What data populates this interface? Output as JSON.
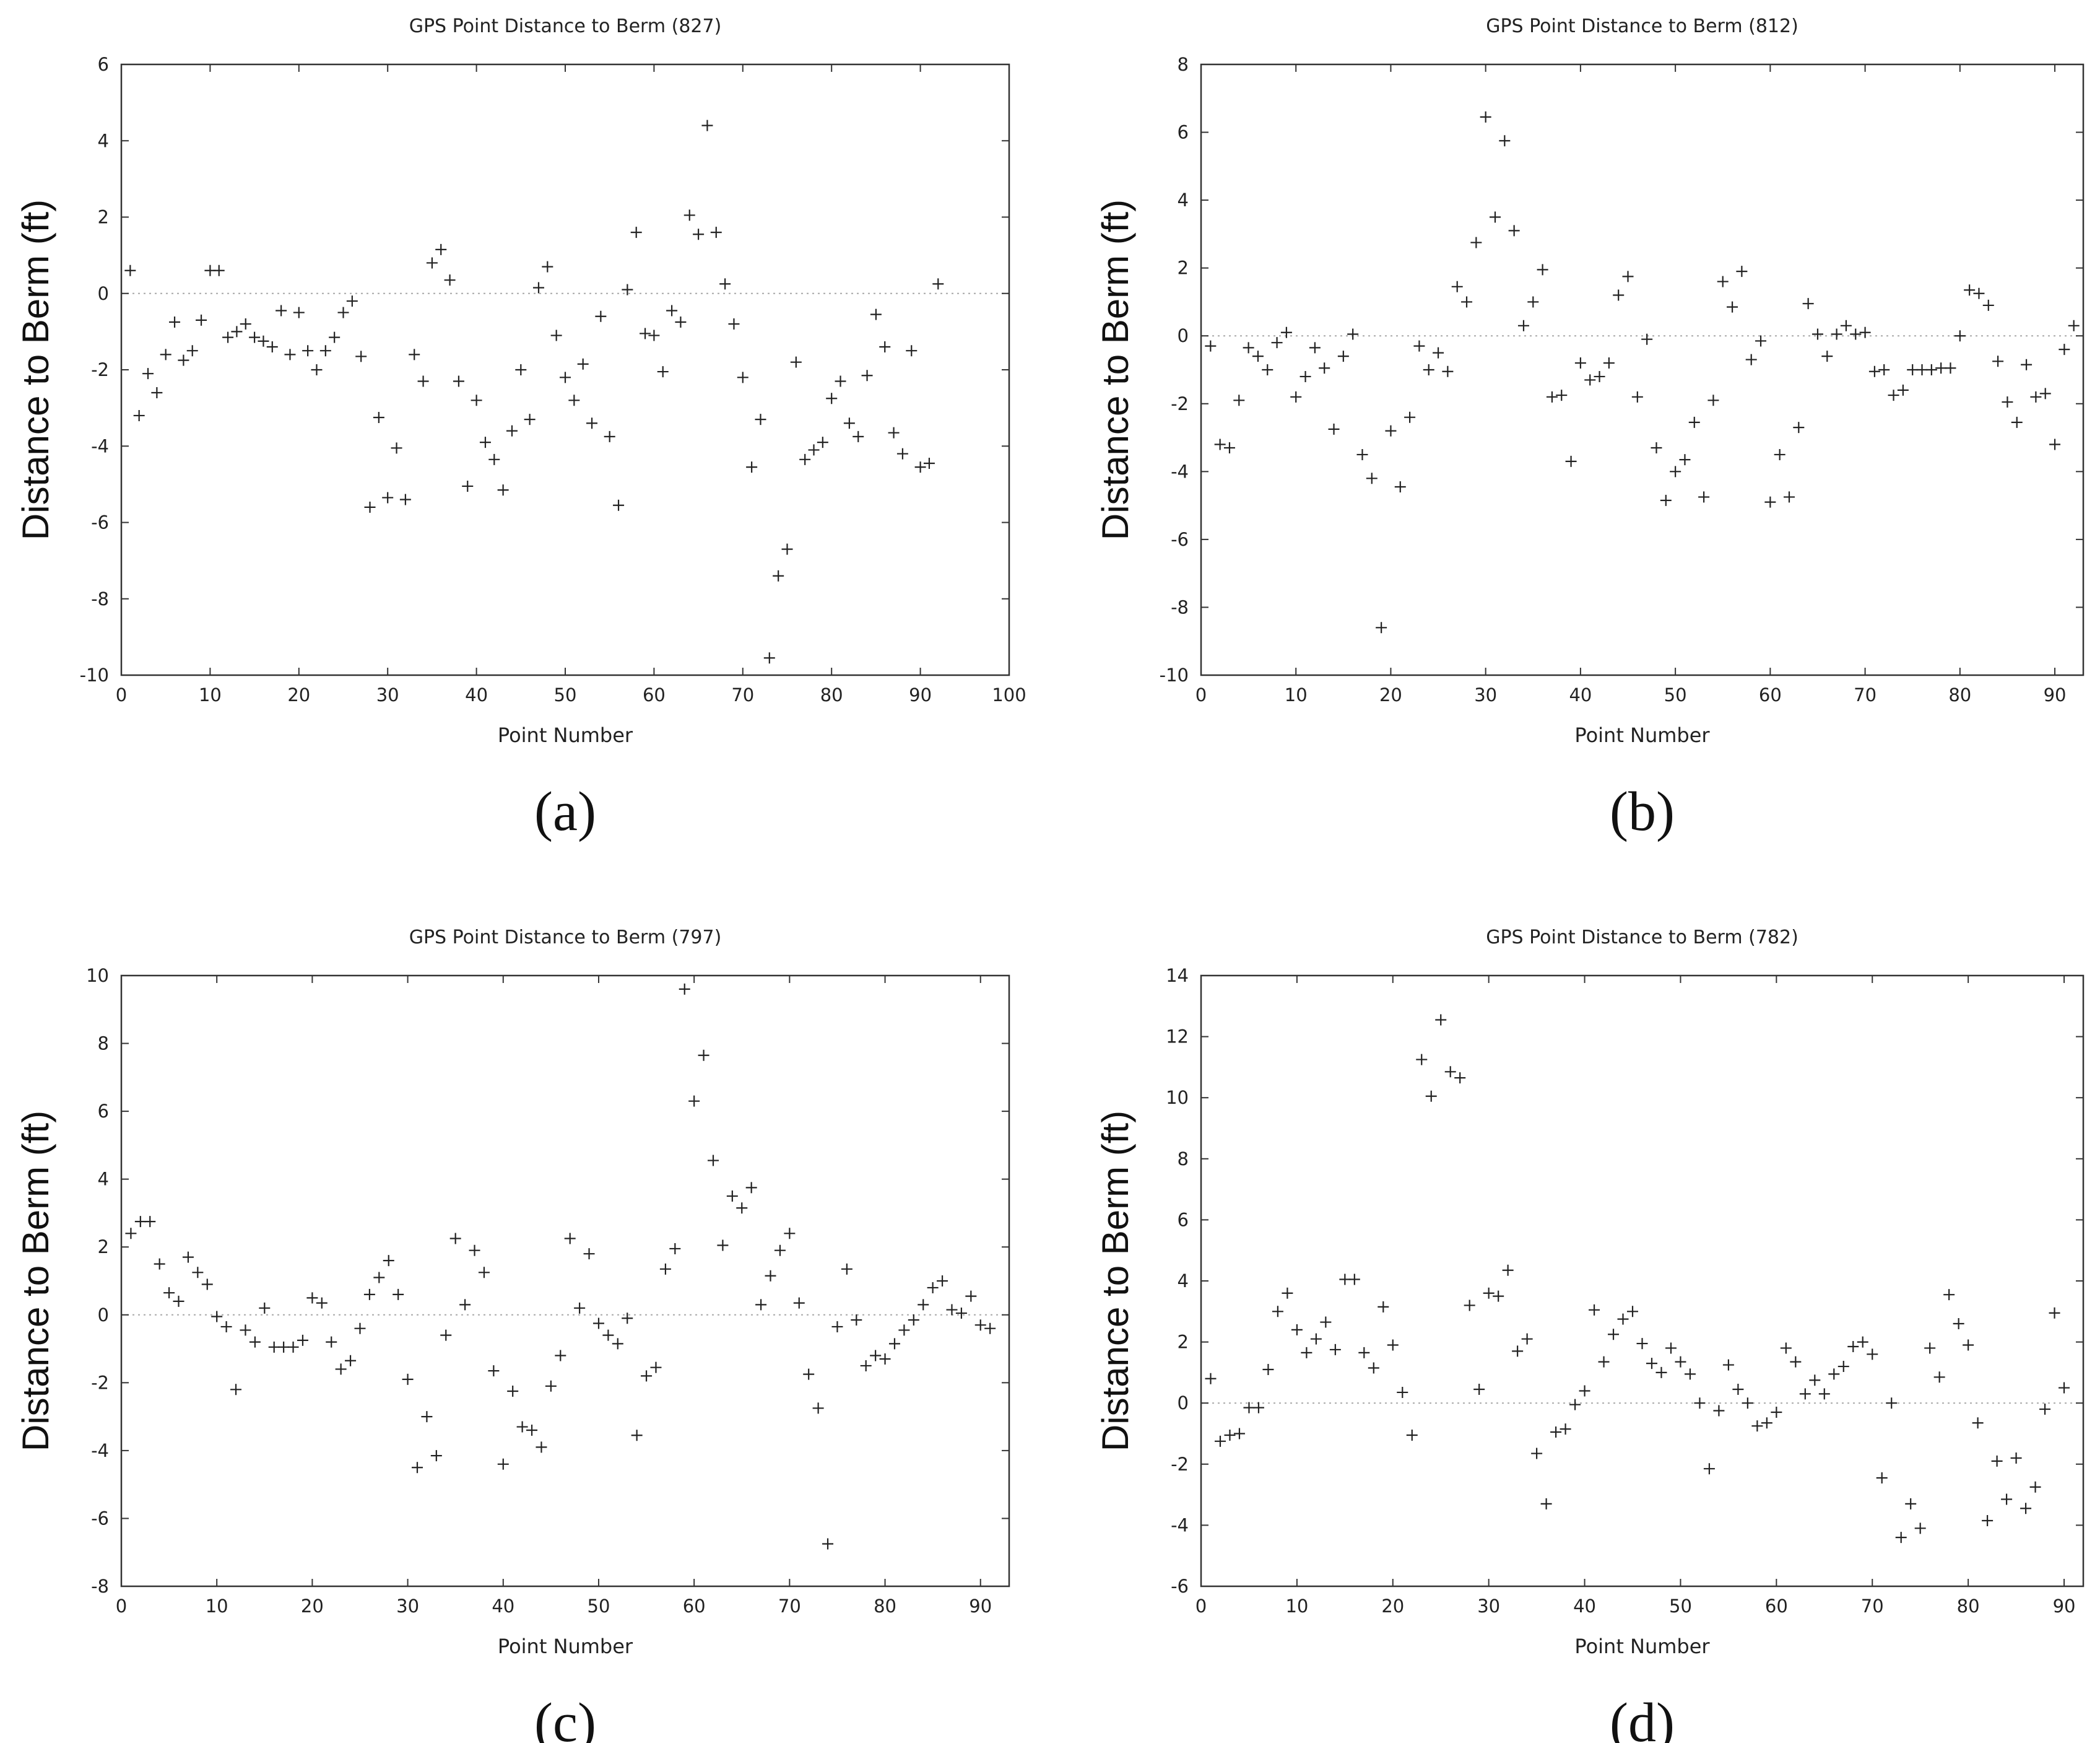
{
  "chart_data": [
    {
      "id": "a",
      "type": "scatter",
      "title": "GPS Point Distance to Berm (827)",
      "xlabel": "Point Number",
      "ylabel": "Distance to Berm (ft)",
      "caption": "(a)",
      "xlim": [
        0,
        100
      ],
      "ylim": [
        -10,
        6
      ],
      "xticks": [
        0,
        10,
        20,
        30,
        40,
        50,
        60,
        70,
        80,
        90,
        100
      ],
      "yticks": [
        -10,
        -8,
        -6,
        -4,
        -2,
        0,
        2,
        4,
        6
      ],
      "zero_line": true,
      "marker": "+",
      "values": [
        0.6,
        -3.2,
        -2.1,
        -2.6,
        -1.6,
        -0.75,
        -1.75,
        -1.5,
        -0.7,
        0.6,
        0.6,
        -1.15,
        -1.0,
        -0.8,
        -1.15,
        -1.25,
        -1.4,
        -0.45,
        -1.6,
        -0.5,
        -1.5,
        -2.0,
        -1.5,
        -1.15,
        -0.5,
        -0.2,
        -1.65,
        -5.6,
        -3.25,
        -5.35,
        -4.05,
        -5.4,
        -1.6,
        -2.3,
        0.8,
        1.15,
        0.35,
        -2.3,
        -5.05,
        -2.8,
        -3.9,
        -4.35,
        -5.15,
        -3.6,
        -2.0,
        -3.3,
        0.15,
        0.7,
        -1.1,
        -2.2,
        -2.8,
        -1.85,
        -3.4,
        -0.6,
        -3.75,
        -5.55,
        0.1,
        1.6,
        -1.05,
        -1.1,
        -2.05,
        -0.45,
        -0.75,
        2.05,
        1.55,
        4.4,
        1.6,
        0.25,
        -0.8,
        -2.2,
        -4.55,
        -3.3,
        -9.55,
        -7.4,
        -6.7,
        -1.8,
        -4.35,
        -4.1,
        -3.9,
        -2.75,
        -2.3,
        -3.4,
        -3.75,
        -2.15,
        -0.55,
        -1.4,
        -3.65,
        -4.2,
        -1.5,
        -4.55,
        -4.45,
        0.25
      ]
    },
    {
      "id": "b",
      "type": "scatter",
      "title": "GPS Point Distance to Berm (812)",
      "xlabel": "Point Number",
      "ylabel": "Distance to Berm (ft)",
      "caption": "(b)",
      "xlim": [
        0,
        93
      ],
      "ylim": [
        -10,
        8
      ],
      "xticks": [
        0,
        10,
        20,
        30,
        40,
        50,
        60,
        70,
        80,
        90
      ],
      "yticks": [
        -10,
        -8,
        -6,
        -4,
        -2,
        0,
        2,
        4,
        6,
        8
      ],
      "zero_line": true,
      "marker": "+",
      "values": [
        -0.3,
        -3.2,
        -3.3,
        -1.9,
        -0.35,
        -0.6,
        -1.0,
        -0.2,
        0.1,
        -1.8,
        -1.2,
        -0.35,
        -0.95,
        -2.75,
        -0.6,
        0.05,
        -3.5,
        -4.2,
        -8.6,
        -2.8,
        -4.45,
        -2.4,
        -0.3,
        -1.0,
        -0.5,
        -1.05,
        1.45,
        1.0,
        2.75,
        6.45,
        3.5,
        5.75,
        3.1,
        0.3,
        1.0,
        1.95,
        -1.8,
        -1.75,
        -3.7,
        -0.8,
        -1.3,
        -1.2,
        -0.8,
        1.2,
        1.75,
        -1.8,
        -0.1,
        -3.3,
        -4.85,
        -4.0,
        -3.65,
        -2.55,
        -4.75,
        -1.9,
        1.6,
        0.85,
        1.9,
        -0.7,
        -0.15,
        -4.9,
        -3.5,
        -4.75,
        -2.7,
        0.95,
        0.05,
        -0.6,
        0.05,
        0.3,
        0.05,
        0.1,
        -1.05,
        -1.0,
        -1.75,
        -1.6,
        -1.0,
        -1.0,
        -1.0,
        -0.95,
        -0.95,
        0.0,
        1.35,
        1.25,
        0.9,
        -0.75,
        -1.95,
        -2.55,
        -0.85,
        -1.8,
        -1.7,
        -3.2,
        -0.4,
        0.3
      ]
    },
    {
      "id": "c",
      "type": "scatter",
      "title": "GPS Point Distance to Berm (797)",
      "xlabel": "Point Number",
      "ylabel": "Distance to Berm (ft)",
      "caption": "(c)",
      "xlim": [
        0,
        93
      ],
      "ylim": [
        -8,
        10
      ],
      "xticks": [
        0,
        10,
        20,
        30,
        40,
        50,
        60,
        70,
        80,
        90
      ],
      "yticks": [
        -8,
        -6,
        -4,
        -2,
        0,
        2,
        4,
        6,
        8,
        10
      ],
      "zero_line": true,
      "marker": "+",
      "values": [
        2.4,
        2.75,
        2.75,
        1.5,
        0.65,
        0.4,
        1.7,
        1.25,
        0.9,
        -0.05,
        -0.35,
        -2.2,
        -0.45,
        -0.8,
        0.2,
        -0.95,
        -0.95,
        -0.95,
        -0.75,
        0.5,
        0.35,
        -0.8,
        -1.6,
        -1.35,
        -0.4,
        0.6,
        1.1,
        1.6,
        0.6,
        -1.9,
        -4.5,
        -3.0,
        -4.15,
        -0.6,
        2.25,
        0.3,
        1.9,
        1.25,
        -1.65,
        -4.4,
        -2.25,
        -3.3,
        -3.4,
        -3.9,
        -2.1,
        -1.2,
        2.25,
        0.2,
        1.8,
        -0.25,
        -0.6,
        -0.85,
        -0.1,
        -3.55,
        -1.8,
        -1.55,
        1.35,
        1.95,
        9.6,
        6.3,
        7.65,
        4.55,
        2.05,
        3.5,
        3.15,
        3.75,
        0.3,
        1.15,
        1.9,
        2.4,
        0.35,
        -1.75,
        -2.75,
        -6.75,
        -0.35,
        1.35,
        -0.15,
        -1.5,
        -1.2,
        -1.3,
        -0.85,
        -0.45,
        -0.15,
        0.3,
        0.8,
        1.0,
        0.15,
        0.05,
        0.55,
        -0.3,
        -0.4
      ]
    },
    {
      "id": "d",
      "type": "scatter",
      "title": "GPS Point Distance to Berm (782)",
      "xlabel": "Point Number",
      "ylabel": "Distance to Berm (ft)",
      "caption": "(d)",
      "xlim": [
        0,
        92
      ],
      "ylim": [
        -6,
        14
      ],
      "xticks": [
        0,
        10,
        20,
        30,
        40,
        50,
        60,
        70,
        80,
        90
      ],
      "yticks": [
        -6,
        -4,
        -2,
        0,
        2,
        4,
        6,
        8,
        10,
        12,
        14
      ],
      "zero_line": true,
      "marker": "+",
      "values": [
        0.8,
        -1.25,
        -1.05,
        -1.0,
        -0.15,
        -0.15,
        1.1,
        3.0,
        3.6,
        2.4,
        1.65,
        2.1,
        2.65,
        1.75,
        4.05,
        4.05,
        1.65,
        1.15,
        3.15,
        1.9,
        0.35,
        -1.05,
        11.25,
        10.05,
        12.55,
        10.85,
        10.65,
        3.2,
        0.45,
        3.6,
        3.5,
        4.35,
        1.7,
        2.1,
        -1.65,
        -3.3,
        -0.95,
        -0.85,
        -0.05,
        0.4,
        3.05,
        1.35,
        2.25,
        2.75,
        3.0,
        1.95,
        1.3,
        1.0,
        1.8,
        1.35,
        0.95,
        0.0,
        -2.15,
        -0.25,
        1.25,
        0.45,
        0.0,
        -0.75,
        -0.65,
        -0.3,
        1.8,
        1.35,
        0.3,
        0.75,
        0.3,
        0.95,
        1.2,
        1.85,
        2.0,
        1.6,
        -2.45,
        0.0,
        -4.4,
        -3.3,
        -4.1,
        1.8,
        0.85,
        3.55,
        2.6,
        1.9,
        -0.65,
        -3.85,
        -1.9,
        -3.15,
        -1.8,
        -3.45,
        -2.75,
        -0.2,
        2.95,
        0.5
      ]
    }
  ]
}
